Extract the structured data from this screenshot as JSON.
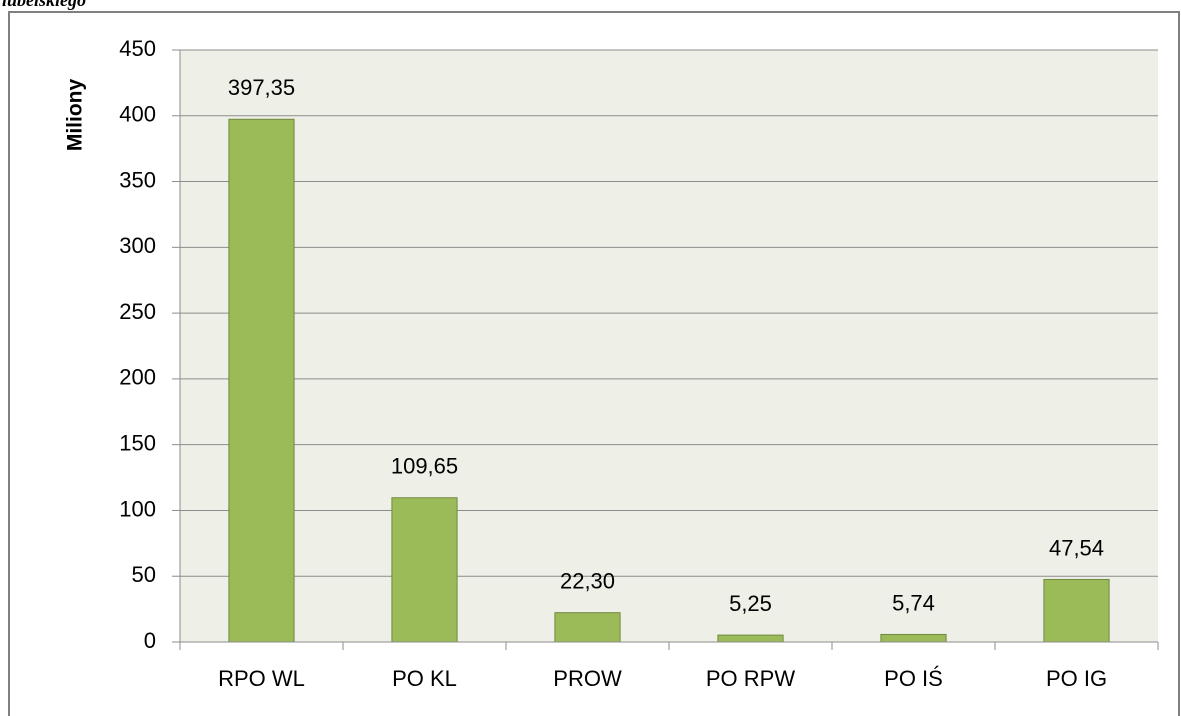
{
  "chart_data": {
    "type": "bar",
    "caption": "lubelskiego",
    "y_label": "Miliony",
    "categories": [
      "RPO WL",
      "PO KL",
      "PROW",
      "PO RPW",
      "PO IŚ",
      "PO IG"
    ],
    "values": [
      397.35,
      109.65,
      22.3,
      5.25,
      5.74,
      47.54
    ],
    "value_labels": [
      "397,35",
      "109,65",
      "22,30",
      "5,25",
      "5,74",
      "47,54"
    ],
    "color": "#9bbb59",
    "ylim": [
      0,
      450
    ],
    "yticks": [
      0,
      50,
      100,
      150,
      200,
      250,
      300,
      350,
      400,
      450
    ],
    "grid": true
  }
}
